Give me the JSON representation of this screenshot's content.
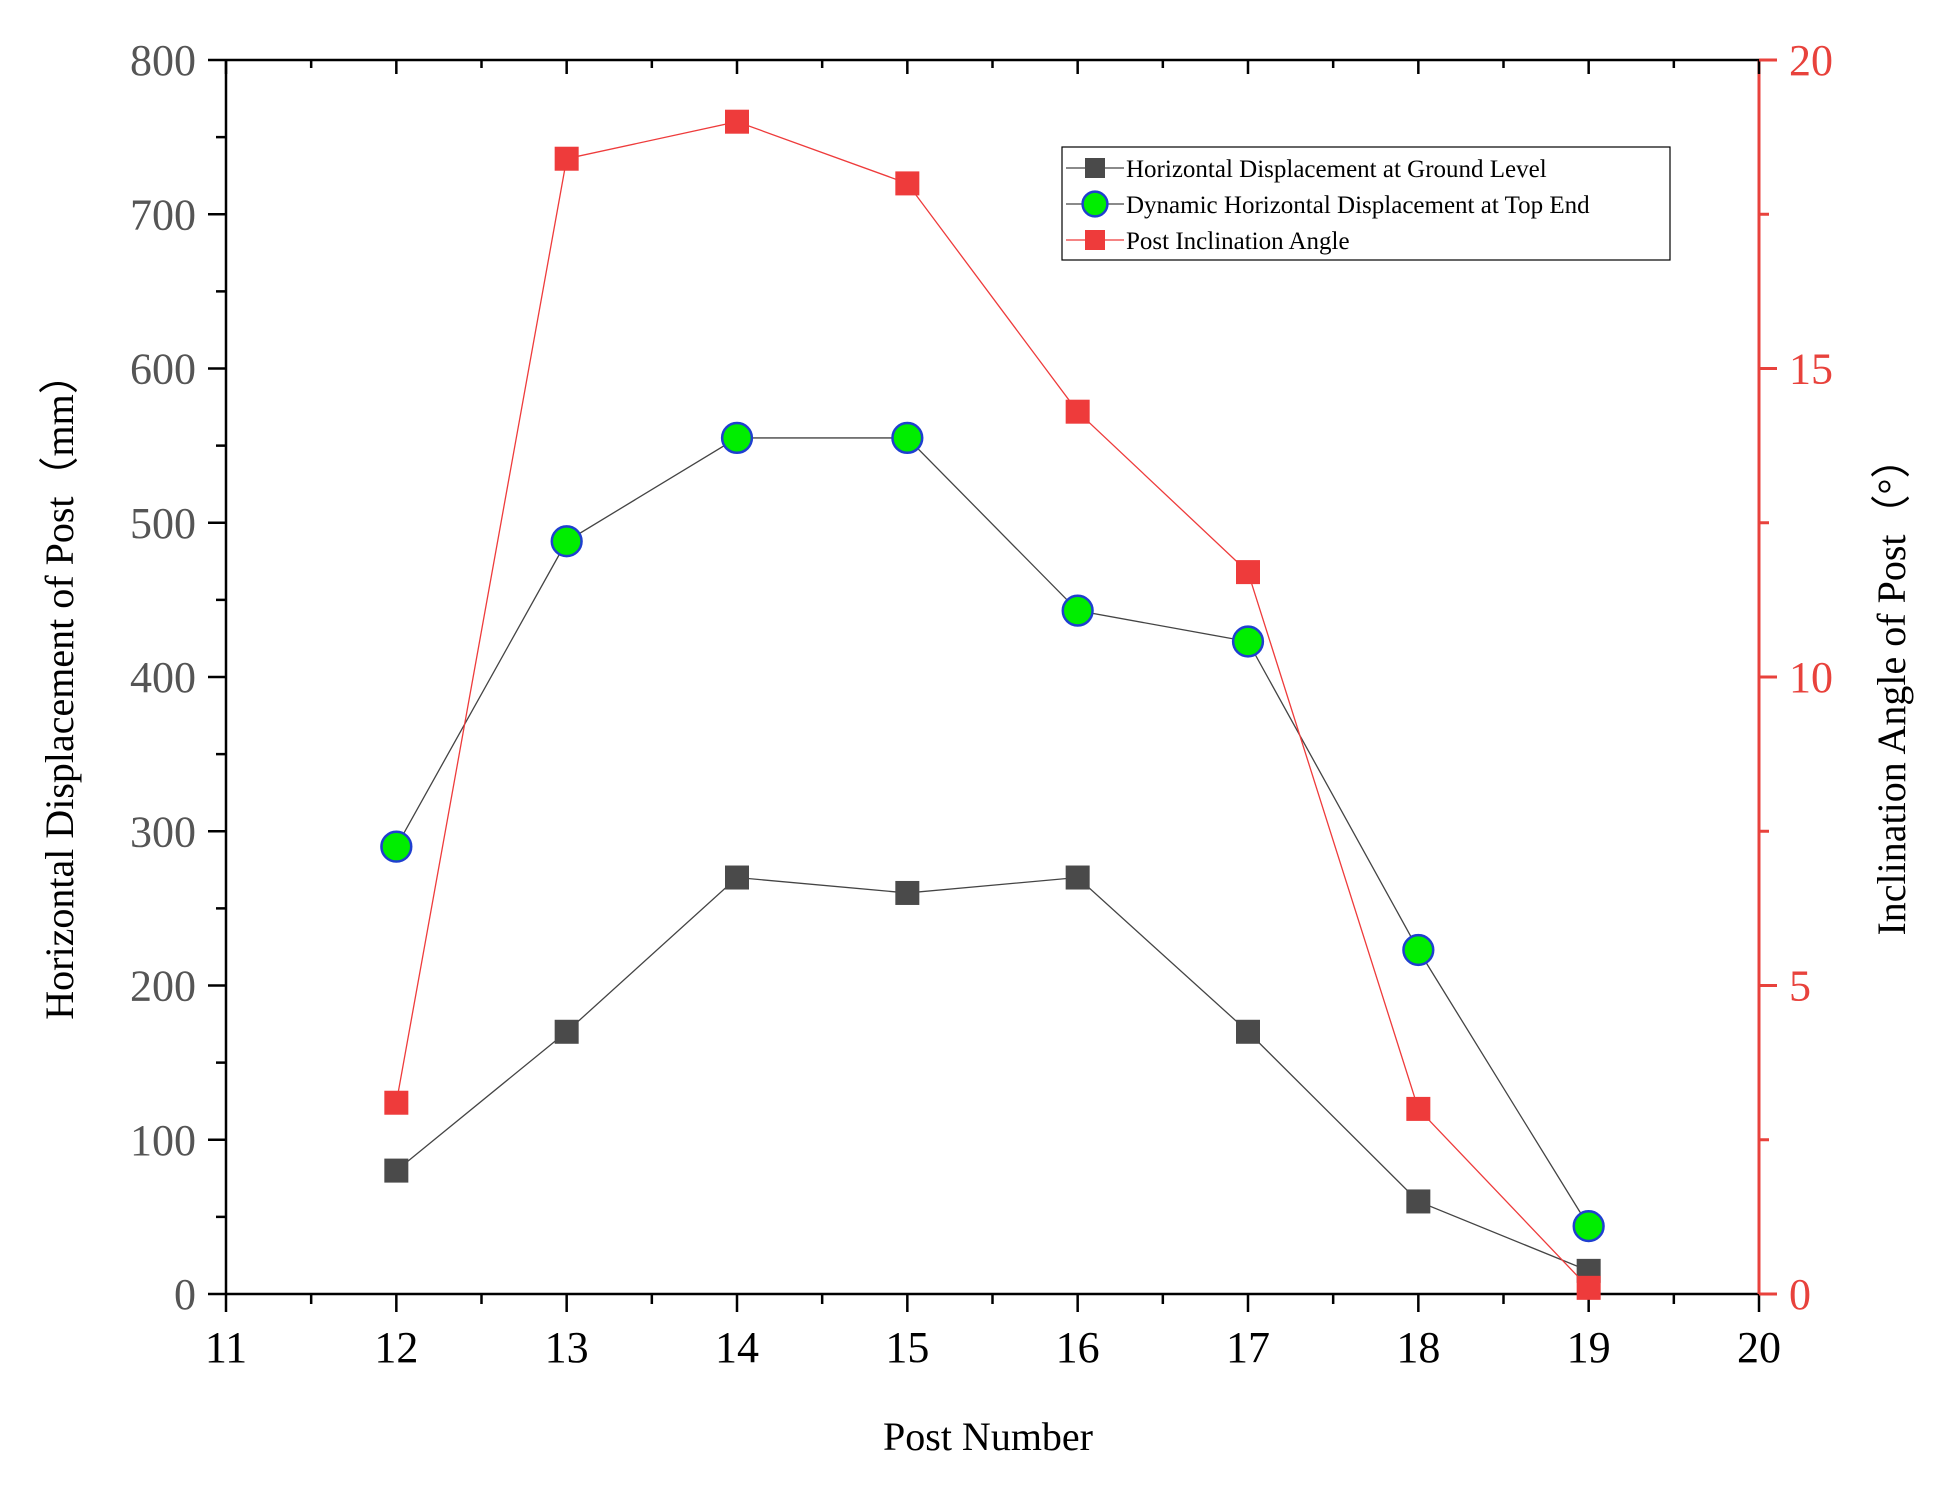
{
  "chart_data": {
    "type": "line",
    "x_axis": {
      "label": "Post Number",
      "range": [
        11,
        20
      ],
      "ticks": [
        "11",
        "12",
        "13",
        "14",
        "15",
        "16",
        "17",
        "18",
        "19",
        "20"
      ]
    },
    "y_axis_left": {
      "label": "Horizontal Displacement of Post（mm）",
      "range": [
        0,
        800
      ],
      "ticks": [
        "0",
        "100",
        "200",
        "300",
        "400",
        "500",
        "600",
        "700",
        "800"
      ]
    },
    "y_axis_right": {
      "label": "Inclination Angle of Post（°）",
      "range": [
        0,
        20
      ],
      "ticks": [
        "0",
        "5",
        "10",
        "15",
        "20"
      ]
    },
    "x": [
      12,
      13,
      14,
      15,
      16,
      17,
      18,
      19
    ],
    "series": [
      {
        "name": "Horizontal Displacement at Ground Level",
        "axis": "left",
        "marker": "square",
        "color": "#4a4a4a",
        "line_color": "#444444",
        "values": [
          80,
          170,
          270,
          260,
          270,
          170,
          60,
          15
        ]
      },
      {
        "name": "Dynamic Horizontal Displacement at Top End",
        "axis": "left",
        "marker": "circle",
        "color": "#00ee00",
        "edge_color": "#1f3fd0",
        "line_color": "#444444",
        "values": [
          290,
          488,
          555,
          555,
          443,
          423,
          223,
          44
        ]
      },
      {
        "name": "Post Inclination Angle",
        "axis": "right",
        "marker": "square",
        "color": "#ee3b3b",
        "line_color": "#ee3b3b",
        "values": [
          3.1,
          18.4,
          19.0,
          18.0,
          14.3,
          11.7,
          3.0,
          0.1
        ]
      }
    ],
    "legend_position": "top-right",
    "grid": false,
    "left_axis_color": "#000000",
    "right_axis_color": "#e8423c",
    "tick_label_color_left": "#555555",
    "tick_label_color_x": "#000000",
    "tick_label_color_right": "#e8423c"
  }
}
